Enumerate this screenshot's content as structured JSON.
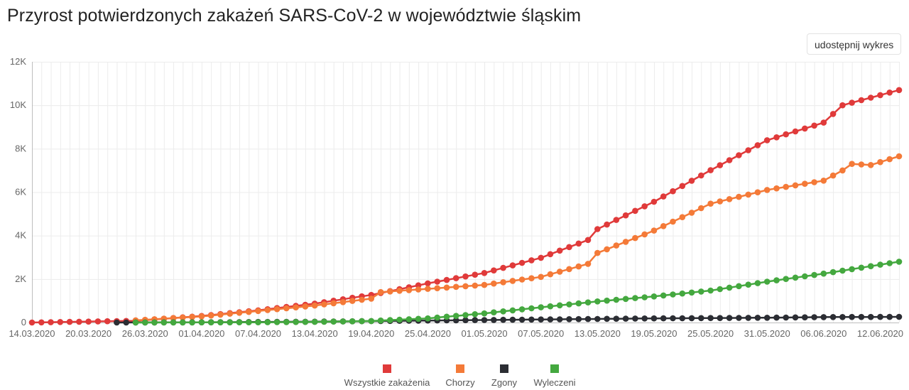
{
  "page": {
    "title": "Przyrost potwierdzonych zakażeń SARS-CoV-2 w województwie śląskim",
    "share_label": "udostępnij wykres"
  },
  "chart_data": {
    "type": "line",
    "x_start": "2020-03-14",
    "x_end": "2020-06-14",
    "x_ticks": [
      "14.03.2020",
      "20.03.2020",
      "26.03.2020",
      "01.04.2020",
      "07.04.2020",
      "13.04.2020",
      "19.04.2020",
      "25.04.2020",
      "01.05.2020",
      "07.05.2020",
      "13.05.2020",
      "19.05.2020",
      "25.05.2020",
      "31.05.2020",
      "06.06.2020",
      "12.06.2020"
    ],
    "y_ticks": [
      "0",
      "2K",
      "4K",
      "6K",
      "8K",
      "10K",
      "12K"
    ],
    "ylim": [
      0,
      12000
    ],
    "grid": true,
    "legend_position": "bottom",
    "series": [
      {
        "name": "Wszystkie zakażenia",
        "color": "#e03a3a",
        "anchors": [
          [
            "2020-03-14",
            0
          ],
          [
            "2020-03-25",
            80
          ],
          [
            "2020-04-01",
            300
          ],
          [
            "2020-04-07",
            560
          ],
          [
            "2020-04-13",
            870
          ],
          [
            "2020-04-19",
            1270
          ],
          [
            "2020-04-25",
            1800
          ],
          [
            "2020-05-01",
            2280
          ],
          [
            "2020-05-07",
            2980
          ],
          [
            "2020-05-12",
            3800
          ],
          [
            "2020-05-13",
            4300
          ],
          [
            "2020-05-19",
            5560
          ],
          [
            "2020-05-25",
            7010
          ],
          [
            "2020-05-31",
            8390
          ],
          [
            "2020-06-06",
            9200
          ],
          [
            "2020-06-08",
            10000
          ],
          [
            "2020-06-14",
            10700
          ]
        ]
      },
      {
        "name": "Chorzy",
        "color": "#f47a38",
        "anchors": [
          [
            "2020-03-25",
            100
          ],
          [
            "2020-04-01",
            280
          ],
          [
            "2020-04-07",
            530
          ],
          [
            "2020-04-13",
            780
          ],
          [
            "2020-04-19",
            1100
          ],
          [
            "2020-04-20",
            1400
          ],
          [
            "2020-04-25",
            1550
          ],
          [
            "2020-05-01",
            1730
          ],
          [
            "2020-05-07",
            2100
          ],
          [
            "2020-05-12",
            2700
          ],
          [
            "2020-05-13",
            3200
          ],
          [
            "2020-05-19",
            4230
          ],
          [
            "2020-05-25",
            5470
          ],
          [
            "2020-05-31",
            6100
          ],
          [
            "2020-06-06",
            6530
          ],
          [
            "2020-06-08",
            7000
          ],
          [
            "2020-06-09",
            7300
          ],
          [
            "2020-06-11",
            7250
          ],
          [
            "2020-06-14",
            7650
          ]
        ]
      },
      {
        "name": "Zgony",
        "color": "#2b2d33",
        "anchors": [
          [
            "2020-03-23",
            0
          ],
          [
            "2020-04-01",
            10
          ],
          [
            "2020-04-13",
            40
          ],
          [
            "2020-04-25",
            90
          ],
          [
            "2020-05-07",
            140
          ],
          [
            "2020-05-19",
            190
          ],
          [
            "2020-05-31",
            220
          ],
          [
            "2020-06-06",
            250
          ],
          [
            "2020-06-14",
            260
          ]
        ]
      },
      {
        "name": "Wyleczeni",
        "color": "#44a83f",
        "anchors": [
          [
            "2020-03-25",
            0
          ],
          [
            "2020-04-07",
            10
          ],
          [
            "2020-04-13",
            30
          ],
          [
            "2020-04-19",
            70
          ],
          [
            "2020-04-25",
            190
          ],
          [
            "2020-05-01",
            420
          ],
          [
            "2020-05-07",
            700
          ],
          [
            "2020-05-13",
            970
          ],
          [
            "2020-05-19",
            1200
          ],
          [
            "2020-05-25",
            1470
          ],
          [
            "2020-05-31",
            1880
          ],
          [
            "2020-06-06",
            2250
          ],
          [
            "2020-06-14",
            2800
          ]
        ]
      }
    ]
  }
}
